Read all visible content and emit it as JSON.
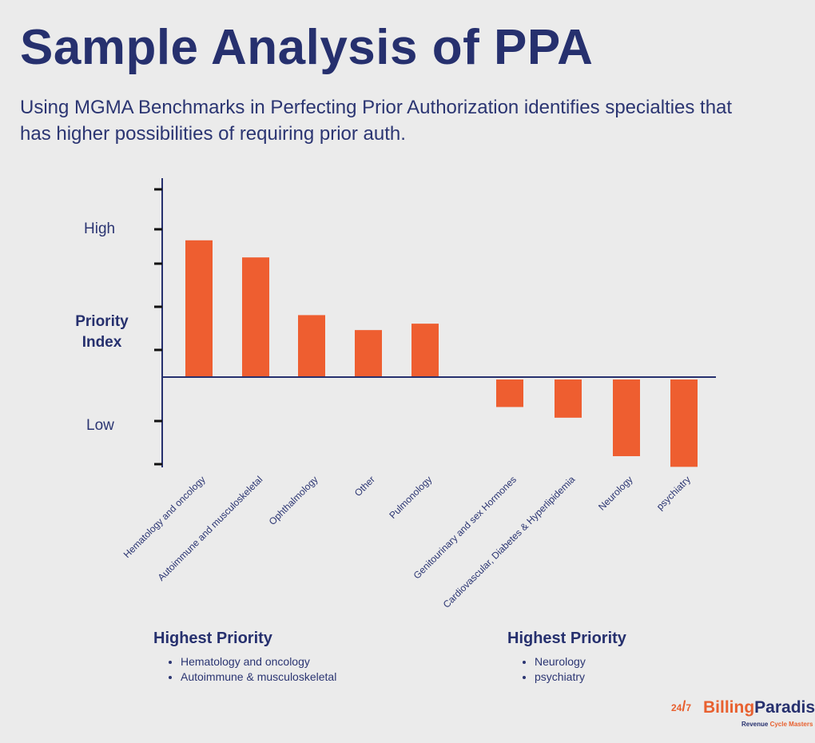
{
  "header": {
    "title": "Sample Analysis of PPA",
    "subtitle": "Using MGMA Benchmarks in Perfecting Prior Authorization identifies specialties that has higher possibilities of requiring prior auth."
  },
  "chart_data": {
    "type": "bar",
    "ylabel": "Priority Index",
    "y_tick_labels": {
      "high": "High",
      "low": "Low"
    },
    "categories": [
      "Hematology and oncology",
      "Autoimmune and musculoskeletal",
      "Ophthalmology",
      "Other",
      "Pulmonology",
      "Genitourinary and sex Hormones",
      "Cardiovascular, Diabetes & Hyperlipidemia",
      "Neurology",
      "psychiatry"
    ],
    "values": [
      3.2,
      2.8,
      1.45,
      1.1,
      1.25,
      -0.7,
      -0.95,
      -1.85,
      -2.1
    ],
    "ylim": [
      -2.1,
      4.5
    ],
    "grid": false,
    "bar_color": "#ee5e30",
    "axis_color": "#26306e"
  },
  "summary": {
    "left": {
      "heading": "Highest Priority",
      "items": [
        "Hematology and oncology",
        "Autoimmune & musculoskeletal"
      ]
    },
    "right": {
      "heading": "Highest Priority",
      "items": [
        "Neurology",
        "psychiatry"
      ]
    }
  },
  "logo": {
    "mark_num": "24",
    "mark_sub": "7",
    "name_part1": "Billing",
    "name_part2": "Paradise",
    "tagline_part1": "Revenue ",
    "tagline_part2": "Cycle Masters"
  }
}
